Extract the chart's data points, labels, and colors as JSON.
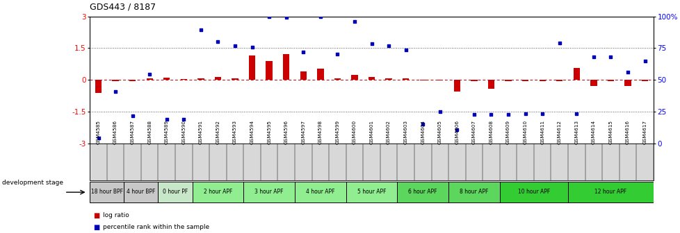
{
  "title": "GDS443 / 8187",
  "samples": [
    "GSM4585",
    "GSM4586",
    "GSM4587",
    "GSM4588",
    "GSM4589",
    "GSM4590",
    "GSM4591",
    "GSM4592",
    "GSM4593",
    "GSM4594",
    "GSM4595",
    "GSM4596",
    "GSM4597",
    "GSM4598",
    "GSM4599",
    "GSM4600",
    "GSM4601",
    "GSM4602",
    "GSM4603",
    "GSM4604",
    "GSM4605",
    "GSM4606",
    "GSM4607",
    "GSM4608",
    "GSM4609",
    "GSM4610",
    "GSM4611",
    "GSM4612",
    "GSM4613",
    "GSM4614",
    "GSM4615",
    "GSM4616",
    "GSM4617"
  ],
  "log_ratio": [
    -0.62,
    -0.05,
    -0.05,
    0.06,
    0.1,
    0.04,
    0.07,
    0.12,
    0.08,
    1.15,
    0.9,
    1.22,
    0.38,
    0.52,
    0.08,
    0.22,
    0.12,
    0.06,
    0.06,
    -0.02,
    -0.02,
    -0.55,
    -0.06,
    -0.42,
    -0.06,
    -0.06,
    -0.05,
    -0.05,
    0.55,
    -0.28,
    -0.06,
    -0.28,
    -0.05
  ],
  "percentile_rank": [
    -2.75,
    -0.55,
    -1.7,
    0.25,
    -1.85,
    -1.85,
    2.35,
    1.8,
    1.6,
    1.55,
    3.0,
    2.95,
    1.3,
    3.0,
    1.2,
    2.75,
    1.7,
    1.6,
    1.4,
    -2.1,
    -1.5,
    -2.35,
    -1.65,
    -1.65,
    -1.62,
    -1.6,
    -1.6,
    1.75,
    -1.6,
    1.1,
    1.1,
    0.35,
    0.9
  ],
  "stages": [
    {
      "label": "18 hour BPF",
      "start": 0,
      "end": 2,
      "color": "#c8c8c8"
    },
    {
      "label": "4 hour BPF",
      "start": 2,
      "end": 4,
      "color": "#c8c8c8"
    },
    {
      "label": "0 hour PF",
      "start": 4,
      "end": 6,
      "color": "#c8e6c8"
    },
    {
      "label": "2 hour APF",
      "start": 6,
      "end": 9,
      "color": "#90ee90"
    },
    {
      "label": "3 hour APF",
      "start": 9,
      "end": 12,
      "color": "#90ee90"
    },
    {
      "label": "4 hour APF",
      "start": 12,
      "end": 15,
      "color": "#90ee90"
    },
    {
      "label": "5 hour APF",
      "start": 15,
      "end": 18,
      "color": "#90ee90"
    },
    {
      "label": "6 hour APF",
      "start": 18,
      "end": 21,
      "color": "#5cd65c"
    },
    {
      "label": "8 hour APF",
      "start": 21,
      "end": 24,
      "color": "#5cd65c"
    },
    {
      "label": "10 hour APF",
      "start": 24,
      "end": 28,
      "color": "#33cc33"
    },
    {
      "label": "12 hour APF",
      "start": 28,
      "end": 33,
      "color": "#33cc33"
    }
  ],
  "ylim": [
    -3,
    3
  ],
  "bar_color": "#cc0000",
  "dot_color": "#0000bb",
  "zero_line_color": "#cc0000",
  "dotted_line_color": "#555555",
  "dotted_lines": [
    1.5,
    -1.5
  ],
  "right_axis_labels": [
    "0",
    "25",
    "50",
    "75",
    "100%"
  ],
  "right_axis_values": [
    -3.0,
    -1.5,
    0.0,
    1.5,
    3.0
  ],
  "left_axis_labels": [
    "-3",
    "-1.5",
    "0",
    "1.5",
    "3"
  ],
  "left_axis_values": [
    -3.0,
    -1.5,
    0.0,
    1.5,
    3.0
  ]
}
